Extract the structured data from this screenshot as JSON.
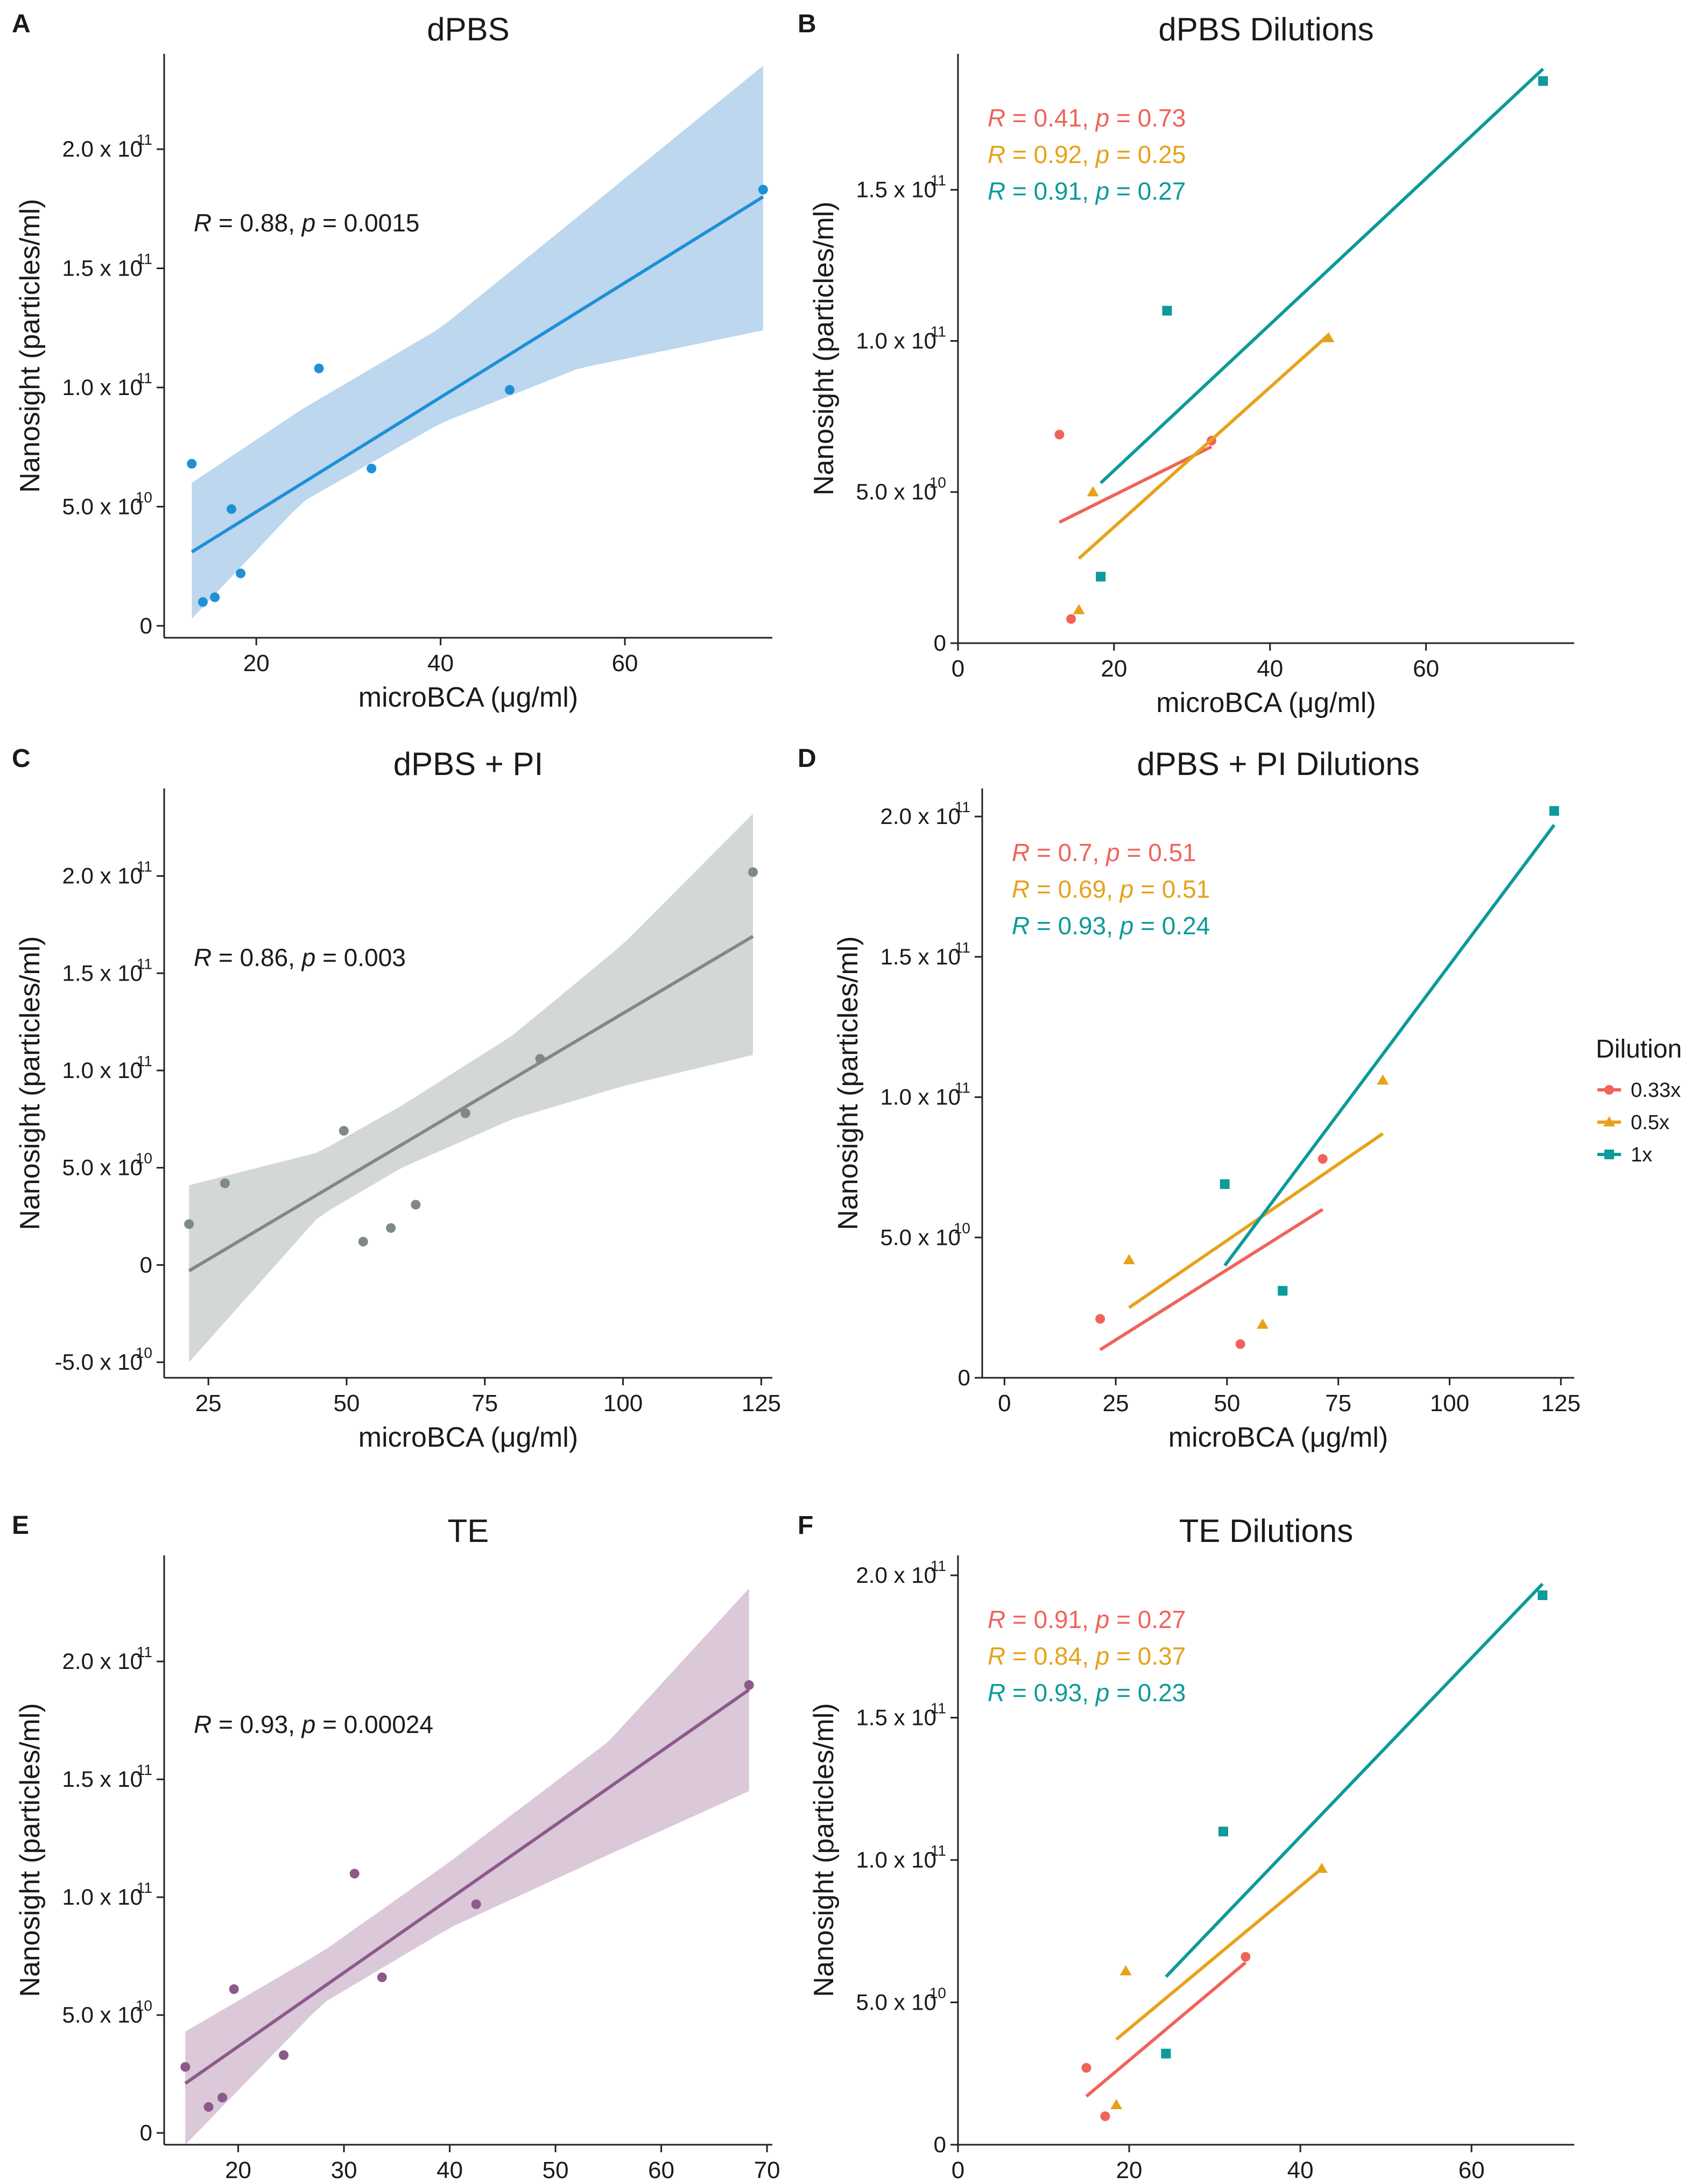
{
  "legend": {
    "title": "Dilution",
    "items": [
      {
        "label": "0.33x",
        "color": "#F0635A"
      },
      {
        "label": "0.5x",
        "color": "#E6A21A"
      },
      {
        "label": "1x",
        "color": "#0C9A9A"
      }
    ]
  },
  "chart_data": [
    {
      "panel": "A",
      "type": "scatter",
      "title": "dPBS",
      "xlabel": "microBCA (μg/ml)",
      "ylabel": "Nanosight (particles/ml)",
      "xlim": [
        10,
        76
      ],
      "ylim": [
        -0.05,
        2.4
      ],
      "xticks": [
        20,
        40,
        60
      ],
      "yticks": [
        {
          "v": 0,
          "l": "0"
        },
        {
          "v": 0.5,
          "l": "5.0 x 10",
          "e": "10"
        },
        {
          "v": 1.0,
          "l": "1.0 x 10",
          "e": "11"
        },
        {
          "v": 1.5,
          "l": "1.5 x 10",
          "e": "11"
        },
        {
          "v": 2.0,
          "l": "2.0 x 10",
          "e": "11"
        }
      ],
      "color": "#1E90D6",
      "band_color": "#BCD7EE",
      "points": [
        [
          13,
          0.68
        ],
        [
          14.2,
          0.1
        ],
        [
          15.5,
          0.12
        ],
        [
          17.3,
          0.49
        ],
        [
          18.3,
          0.22
        ],
        [
          26.8,
          1.08
        ],
        [
          32.5,
          0.66
        ],
        [
          47.5,
          0.99
        ],
        [
          75,
          1.83
        ]
      ],
      "fit": [
        [
          13,
          0.31
        ],
        [
          75,
          1.8
        ]
      ],
      "band": {
        "lower": [
          [
            13,
            0.03
          ],
          [
            25,
            0.52
          ],
          [
            40,
            0.85
          ],
          [
            55,
            1.08
          ],
          [
            75,
            1.24
          ]
        ],
        "upper": [
          [
            13,
            0.6
          ],
          [
            25,
            0.91
          ],
          [
            40,
            1.25
          ],
          [
            55,
            1.72
          ],
          [
            75,
            2.35
          ]
        ]
      },
      "annotation": {
        "r": "0.88",
        "p": "0.0015"
      }
    },
    {
      "panel": "B",
      "type": "scatter",
      "title": "dPBS Dilutions",
      "xlabel": "microBCA (μg/ml)",
      "ylabel": "Nanosight (particles/ml)",
      "xlim": [
        0,
        79
      ],
      "ylim": [
        0,
        1.95
      ],
      "xticks": [
        0,
        20,
        40,
        60
      ],
      "yticks": [
        {
          "v": 0,
          "l": "0"
        },
        {
          "v": 0.5,
          "l": "5.0 x 10",
          "e": "10"
        },
        {
          "v": 1.0,
          "l": "1.0 x 10",
          "e": "11"
        },
        {
          "v": 1.5,
          "l": "1.5 x 10",
          "e": "11"
        }
      ],
      "series": [
        {
          "name": "0.33x",
          "color": "#F0635A",
          "shape": "circle",
          "points": [
            [
              13,
              0.69
            ],
            [
              14.5,
              0.08
            ],
            [
              32.5,
              0.67
            ]
          ],
          "fit": [
            [
              13,
              0.4
            ],
            [
              32.5,
              0.65
            ]
          ],
          "annotation": {
            "r": "0.41",
            "p": "0.73"
          }
        },
        {
          "name": "0.5x",
          "color": "#E6A21A",
          "shape": "triangle",
          "points": [
            [
              17.3,
              0.5
            ],
            [
              15.5,
              0.11
            ],
            [
              47.5,
              1.01
            ]
          ],
          "fit": [
            [
              15.5,
              0.28
            ],
            [
              47.5,
              1.02
            ]
          ],
          "annotation": {
            "r": "0.92",
            "p": "0.25"
          }
        },
        {
          "name": "1x",
          "color": "#0C9A9A",
          "shape": "square",
          "points": [
            [
              18.3,
              0.22
            ],
            [
              26.8,
              1.1
            ],
            [
              75,
              1.86
            ]
          ],
          "fit": [
            [
              18.3,
              0.53
            ],
            [
              75,
              1.9
            ]
          ],
          "annotation": {
            "r": "0.91",
            "p": "0.27"
          }
        }
      ]
    },
    {
      "panel": "C",
      "type": "scatter",
      "title": "dPBS + PI",
      "xlabel": "microBCA (μg/ml)",
      "ylabel": "Nanosight (particles/ml)",
      "xlim": [
        17,
        127
      ],
      "ylim": [
        -0.58,
        2.45
      ],
      "xticks": [
        25,
        50,
        75,
        100,
        125
      ],
      "yticks": [
        {
          "v": -0.5,
          "l": "-5.0 x 10",
          "e": "10"
        },
        {
          "v": 0,
          "l": "0"
        },
        {
          "v": 0.5,
          "l": "5.0 x 10",
          "e": "10"
        },
        {
          "v": 1.0,
          "l": "1.0 x 10",
          "e": "11"
        },
        {
          "v": 1.5,
          "l": "1.5 x 10",
          "e": "11"
        },
        {
          "v": 2.0,
          "l": "2.0 x 10",
          "e": "11"
        }
      ],
      "color": "#7F8A85",
      "band_color": "#D3D7D5",
      "points": [
        [
          21.5,
          0.21
        ],
        [
          28,
          0.42
        ],
        [
          49.5,
          0.69
        ],
        [
          53,
          0.12
        ],
        [
          58,
          0.19
        ],
        [
          62.5,
          0.31
        ],
        [
          71.5,
          0.78
        ],
        [
          85,
          1.06
        ],
        [
          123.5,
          2.02
        ]
      ],
      "fit": [
        [
          21.5,
          -0.03
        ],
        [
          123.5,
          1.69
        ]
      ],
      "band": {
        "lower": [
          [
            21.5,
            -0.5
          ],
          [
            45,
            0.25
          ],
          [
            60,
            0.5
          ],
          [
            80,
            0.75
          ],
          [
            100,
            0.92
          ],
          [
            123.5,
            1.08
          ]
        ],
        "upper": [
          [
            21.5,
            0.41
          ],
          [
            45,
            0.58
          ],
          [
            60,
            0.82
          ],
          [
            80,
            1.18
          ],
          [
            100,
            1.65
          ],
          [
            123.5,
            2.32
          ]
        ]
      },
      "annotation": {
        "r": "0.86",
        "p": "0.003"
      }
    },
    {
      "panel": "D",
      "type": "scatter",
      "title": "dPBS + PI Dilutions",
      "xlabel": "microBCA (μg/ml)",
      "ylabel": "Nanosight (particles/ml)",
      "xlim": [
        -5,
        128
      ],
      "ylim": [
        0,
        2.1
      ],
      "xticks": [
        0,
        25,
        50,
        75,
        100,
        125
      ],
      "yticks": [
        {
          "v": 0,
          "l": "0"
        },
        {
          "v": 0.5,
          "l": "5.0 x 10",
          "e": "10"
        },
        {
          "v": 1.0,
          "l": "1.0 x 10",
          "e": "11"
        },
        {
          "v": 1.5,
          "l": "1.5 x 10",
          "e": "11"
        },
        {
          "v": 2.0,
          "l": "2.0 x 10",
          "e": "11"
        }
      ],
      "series": [
        {
          "name": "0.33x",
          "color": "#F0635A",
          "shape": "circle",
          "points": [
            [
              21.5,
              0.21
            ],
            [
              53,
              0.12
            ],
            [
              71.5,
              0.78
            ]
          ],
          "fit": [
            [
              21.5,
              0.1
            ],
            [
              71.5,
              0.6
            ]
          ],
          "annotation": {
            "r": "0.7",
            "p": "0.51"
          }
        },
        {
          "name": "0.5x",
          "color": "#E6A21A",
          "shape": "triangle",
          "points": [
            [
              28,
              0.42
            ],
            [
              58,
              0.19
            ],
            [
              85,
              1.06
            ]
          ],
          "fit": [
            [
              28,
              0.25
            ],
            [
              85,
              0.87
            ]
          ],
          "annotation": {
            "r": "0.69",
            "p": "0.51"
          }
        },
        {
          "name": "1x",
          "color": "#0C9A9A",
          "shape": "square",
          "points": [
            [
              49.5,
              0.69
            ],
            [
              62.5,
              0.31
            ],
            [
              123.5,
              2.02
            ]
          ],
          "fit": [
            [
              49.5,
              0.4
            ],
            [
              123.5,
              1.97
            ]
          ],
          "annotation": {
            "r": "0.93",
            "p": "0.24"
          }
        }
      ]
    },
    {
      "panel": "E",
      "type": "scatter",
      "title": "TE",
      "xlabel": "microBCA (μg/ml)",
      "ylabel": "Nanosight (particles/ml)",
      "xlim": [
        13,
        70.5
      ],
      "ylim": [
        -0.05,
        2.45
      ],
      "xticks": [
        20,
        30,
        40,
        50,
        60,
        70
      ],
      "yticks": [
        {
          "v": 0,
          "l": "0"
        },
        {
          "v": 0.5,
          "l": "5.0 x 10",
          "e": "10"
        },
        {
          "v": 1.0,
          "l": "1.0 x 10",
          "e": "11"
        },
        {
          "v": 1.5,
          "l": "1.5 x 10",
          "e": "11"
        },
        {
          "v": 2.0,
          "l": "2.0 x 10",
          "e": "11"
        }
      ],
      "color": "#8B5A8A",
      "band_color": "#DBC8D9",
      "points": [
        [
          15,
          0.28
        ],
        [
          17.2,
          0.11
        ],
        [
          18.5,
          0.15
        ],
        [
          19.6,
          0.61
        ],
        [
          24.3,
          0.33
        ],
        [
          31,
          1.1
        ],
        [
          33.6,
          0.66
        ],
        [
          42.5,
          0.97
        ],
        [
          68.3,
          1.9
        ]
      ],
      "fit": [
        [
          15,
          0.21
        ],
        [
          68.3,
          1.88
        ]
      ],
      "band": {
        "lower": [
          [
            15,
            -0.05
          ],
          [
            28,
            0.55
          ],
          [
            40,
            0.87
          ],
          [
            55,
            1.18
          ],
          [
            68.3,
            1.45
          ]
        ],
        "upper": [
          [
            15,
            0.43
          ],
          [
            28,
            0.77
          ],
          [
            40,
            1.15
          ],
          [
            55,
            1.66
          ],
          [
            68.3,
            2.31
          ]
        ]
      },
      "annotation": {
        "r": "0.93",
        "p": "0.00024"
      }
    },
    {
      "panel": "F",
      "type": "scatter",
      "title": "TE Dilutions",
      "xlabel": "microBCA (μg/ml)",
      "ylabel": "Nanosight (particles/ml)",
      "xlim": [
        0,
        72
      ],
      "ylim": [
        0,
        2.07
      ],
      "xticks": [
        0,
        20,
        40,
        60
      ],
      "yticks": [
        {
          "v": 0,
          "l": "0"
        },
        {
          "v": 0.5,
          "l": "5.0 x 10",
          "e": "10"
        },
        {
          "v": 1.0,
          "l": "1.0 x 10",
          "e": "11"
        },
        {
          "v": 1.5,
          "l": "1.5 x 10",
          "e": "11"
        },
        {
          "v": 2.0,
          "l": "2.0 x 10",
          "e": "11"
        }
      ],
      "series": [
        {
          "name": "0.33x",
          "color": "#F0635A",
          "shape": "circle",
          "points": [
            [
              15,
              0.27
            ],
            [
              17.2,
              0.1
            ],
            [
              33.6,
              0.66
            ]
          ],
          "fit": [
            [
              15,
              0.17
            ],
            [
              33.6,
              0.64
            ]
          ],
          "annotation": {
            "r": "0.91",
            "p": "0.27"
          }
        },
        {
          "name": "0.5x",
          "color": "#E6A21A",
          "shape": "triangle",
          "points": [
            [
              18.5,
              0.14
            ],
            [
              19.6,
              0.61
            ],
            [
              42.5,
              0.97
            ]
          ],
          "fit": [
            [
              18.5,
              0.37
            ],
            [
              42.5,
              0.97
            ]
          ],
          "annotation": {
            "r": "0.84",
            "p": "0.37"
          }
        },
        {
          "name": "1x",
          "color": "#0C9A9A",
          "shape": "square",
          "points": [
            [
              24.3,
              0.32
            ],
            [
              31,
              1.1
            ],
            [
              68.3,
              1.93
            ]
          ],
          "fit": [
            [
              24.3,
              0.59
            ],
            [
              68.3,
              1.97
            ]
          ],
          "annotation": {
            "r": "0.93",
            "p": "0.23"
          }
        }
      ]
    }
  ]
}
